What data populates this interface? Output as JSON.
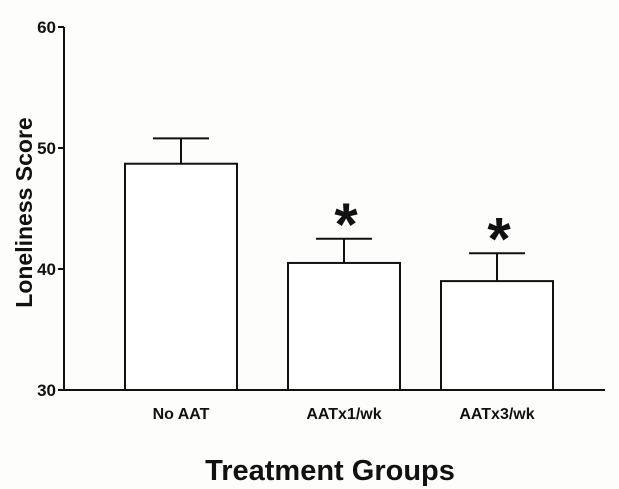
{
  "chart_data": {
    "type": "bar",
    "title": "",
    "xlabel": "Treatment Groups",
    "ylabel": "Loneliness Score",
    "ylim": [
      30,
      60
    ],
    "yticks": [
      30,
      40,
      50,
      60
    ],
    "categories": [
      "No AAT",
      "AATx1/wk",
      "AATx3/wk"
    ],
    "values": [
      48.7,
      40.5,
      39.0
    ],
    "error_upper": [
      2.1,
      2.0,
      2.3
    ],
    "significance": [
      "",
      "*",
      "*"
    ],
    "grid": false,
    "legend": "none",
    "bar_fill": "#ffffff",
    "line_color": "#111111"
  }
}
